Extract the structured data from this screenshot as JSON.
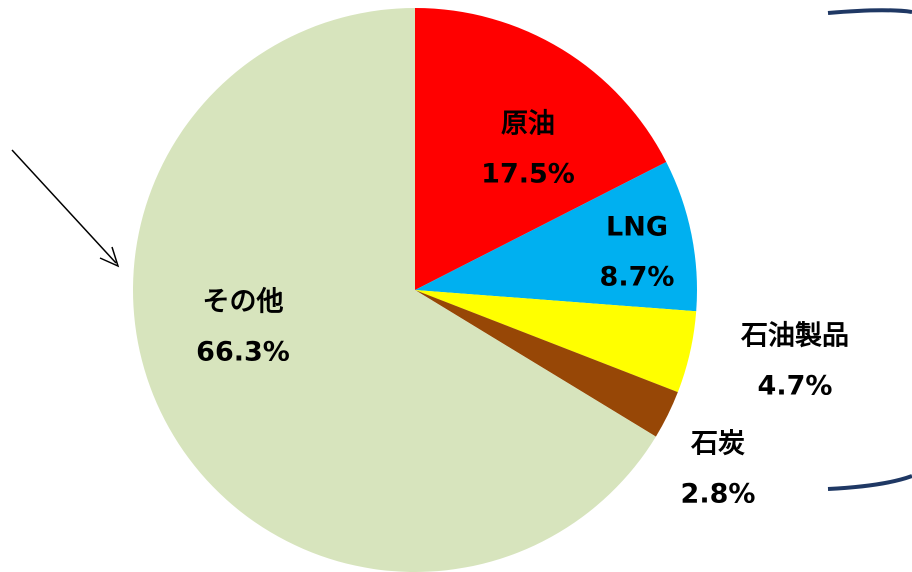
{
  "chart_data": {
    "type": "pie",
    "categories": [
      "原油",
      "LNG",
      "石油製品",
      "石炭",
      "その他"
    ],
    "values": [
      17.5,
      8.7,
      4.7,
      2.8,
      66.3
    ],
    "value_labels": [
      "17.5%",
      "8.7%",
      "4.7%",
      "2.8%",
      "66.3%"
    ],
    "colors": [
      "#ff0000",
      "#00b0f0",
      "#ffff00",
      "#974706",
      "#d7e4bd"
    ]
  }
}
